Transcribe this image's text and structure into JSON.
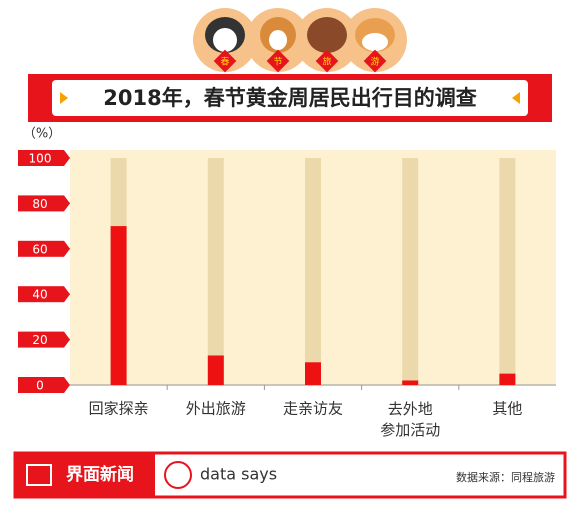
{
  "chart_data": {
    "type": "bar",
    "title": "2018年，春节黄金周居民出行目的调查",
    "y_label": "（%）",
    "categories": [
      "回家探亲",
      "外出旅游",
      "走亲访友",
      "去外地\n参加活动",
      "其他"
    ],
    "values": [
      70,
      13,
      10,
      2,
      5
    ],
    "color": "#ee1111",
    "ylim": [
      0,
      100
    ],
    "yticks": [
      0,
      20,
      40,
      60,
      80,
      100
    ],
    "badges": [
      "春",
      "节",
      "旅",
      "游"
    ],
    "footer": {
      "brand": "界面新闻",
      "tagline": "data says",
      "source": "数据来源：同程旅游"
    }
  }
}
